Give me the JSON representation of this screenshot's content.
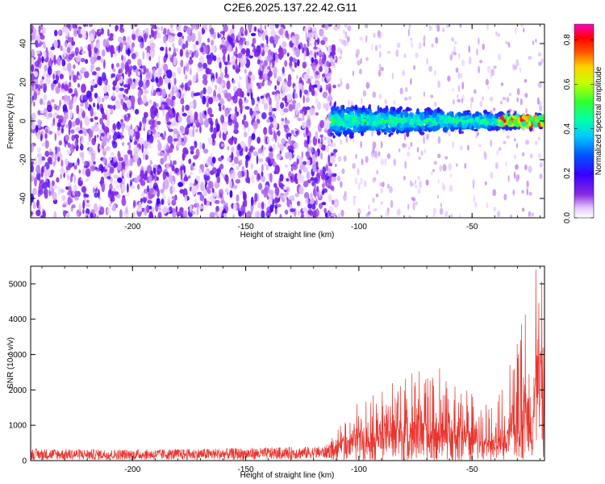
{
  "title": "C2E6.2025.137.22.42.G11",
  "colors": {
    "snr_line": "#e8352f",
    "frame": "#000000",
    "background": "#ffffff"
  },
  "colorbar": {
    "label": "Normalized spectral amplitude",
    "ticks": [
      "0.0",
      "0.2",
      "0.4",
      "0.6",
      "0.8"
    ],
    "range": [
      0,
      0.87
    ],
    "colormap": "rainbow (white-violet-blue-cyan-green-yellow-red-magenta)"
  },
  "chart_data": [
    {
      "type": "heatmap",
      "title": "C2E6.2025.137.22.42.G11",
      "xlabel": "Height of straight line (km)",
      "ylabel": "Frequency (Hz)",
      "xlim": [
        -245,
        -18
      ],
      "ylim": [
        -50,
        50
      ],
      "x_ticks": [
        "-200",
        "-150",
        "-100",
        "-50"
      ],
      "x_tick_values": [
        -200,
        -150,
        -100,
        -50
      ],
      "y_ticks": [
        "40",
        "20",
        "0",
        "-20",
        "-40"
      ],
      "y_tick_values": [
        40,
        20,
        0,
        -20,
        -40
      ],
      "description_regions": [
        {
          "x_range": [
            -245,
            -110
          ],
          "freq_range": [
            -50,
            50
          ],
          "amplitude": "broadband noise ~0.0-0.1"
        },
        {
          "x_range": [
            -110,
            -18
          ],
          "freq_range": [
            -12,
            12
          ],
          "amplitude": "signal band ~0.1-0.5, narrowing with height"
        },
        {
          "x_range": [
            -35,
            -18
          ],
          "freq_range": [
            -4,
            4
          ],
          "amplitude": "strong signal up to ~0.87"
        }
      ]
    },
    {
      "type": "line",
      "xlabel": "Height of straight line (km)",
      "ylabel": "SNR (10 * v/v)",
      "xlim": [
        -245,
        -18
      ],
      "ylim": [
        0,
        5500
      ],
      "x_ticks": [
        "-200",
        "-150",
        "-100",
        "-50"
      ],
      "x_tick_values": [
        -200,
        -150,
        -100,
        -50
      ],
      "y_ticks": [
        "0",
        "1000",
        "2000",
        "3000",
        "4000",
        "5000"
      ],
      "y_tick_values": [
        0,
        1000,
        2000,
        3000,
        4000,
        5000
      ],
      "envelope": {
        "x": [
          -245,
          -200,
          -150,
          -115,
          -110,
          -105,
          -100,
          -95,
          -90,
          -85,
          -80,
          -75,
          -70,
          -65,
          -60,
          -55,
          -50,
          -45,
          -40,
          -35,
          -30,
          -25,
          -22,
          -20,
          -18
        ],
        "y_mean": [
          180,
          170,
          190,
          230,
          400,
          600,
          750,
          850,
          900,
          1000,
          1050,
          1100,
          950,
          1000,
          1000,
          900,
          750,
          600,
          550,
          700,
          1500,
          2000,
          2600,
          3000,
          2000
        ],
        "y_peak": [
          380,
          350,
          400,
          450,
          800,
          1300,
          1700,
          1800,
          2000,
          2300,
          2700,
          3000,
          2500,
          2800,
          2700,
          2300,
          2000,
          1700,
          1600,
          2300,
          3800,
          4500,
          5400,
          5500,
          4500
        ]
      }
    }
  ]
}
